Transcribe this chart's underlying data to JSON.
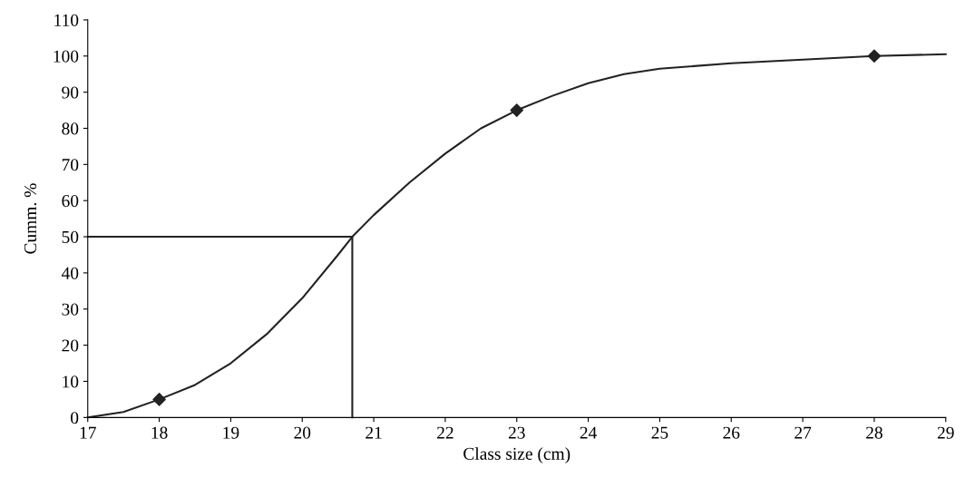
{
  "chart_data": {
    "type": "line",
    "xlabel": "Class size (cm)",
    "ylabel": "Cumm. %",
    "xlim": [
      17,
      29
    ],
    "xticks": [
      17,
      18,
      19,
      20,
      21,
      22,
      23,
      24,
      25,
      26,
      27,
      28,
      29
    ],
    "ylim": [
      0,
      110
    ],
    "yticks": [
      0,
      10,
      20,
      30,
      40,
      50,
      60,
      70,
      80,
      90,
      100,
      110
    ],
    "grid": false,
    "legend": false,
    "series": [
      {
        "color": "#222222",
        "marker": "none",
        "x": [
          17,
          17.5,
          18,
          18.5,
          19,
          19.5,
          20,
          20.5,
          20.7,
          21,
          21.5,
          22,
          22.5,
          23,
          23.5,
          24,
          24.5,
          25,
          26,
          27,
          28,
          29
        ],
        "values": [
          0,
          1.5,
          5,
          9,
          15,
          23,
          33,
          45,
          50,
          56,
          65,
          73,
          80,
          85,
          89,
          92.5,
          95,
          96.5,
          98,
          99,
          100,
          100.5
        ]
      },
      {
        "type": "scatter",
        "color": "#222222",
        "marker": "diamond",
        "x": [
          18,
          23,
          28
        ],
        "values": [
          5,
          85,
          100
        ]
      },
      {
        "color": "#222222",
        "marker": "none",
        "x": [
          17,
          20.7,
          20.7
        ],
        "values": [
          50,
          50,
          0
        ]
      }
    ]
  }
}
